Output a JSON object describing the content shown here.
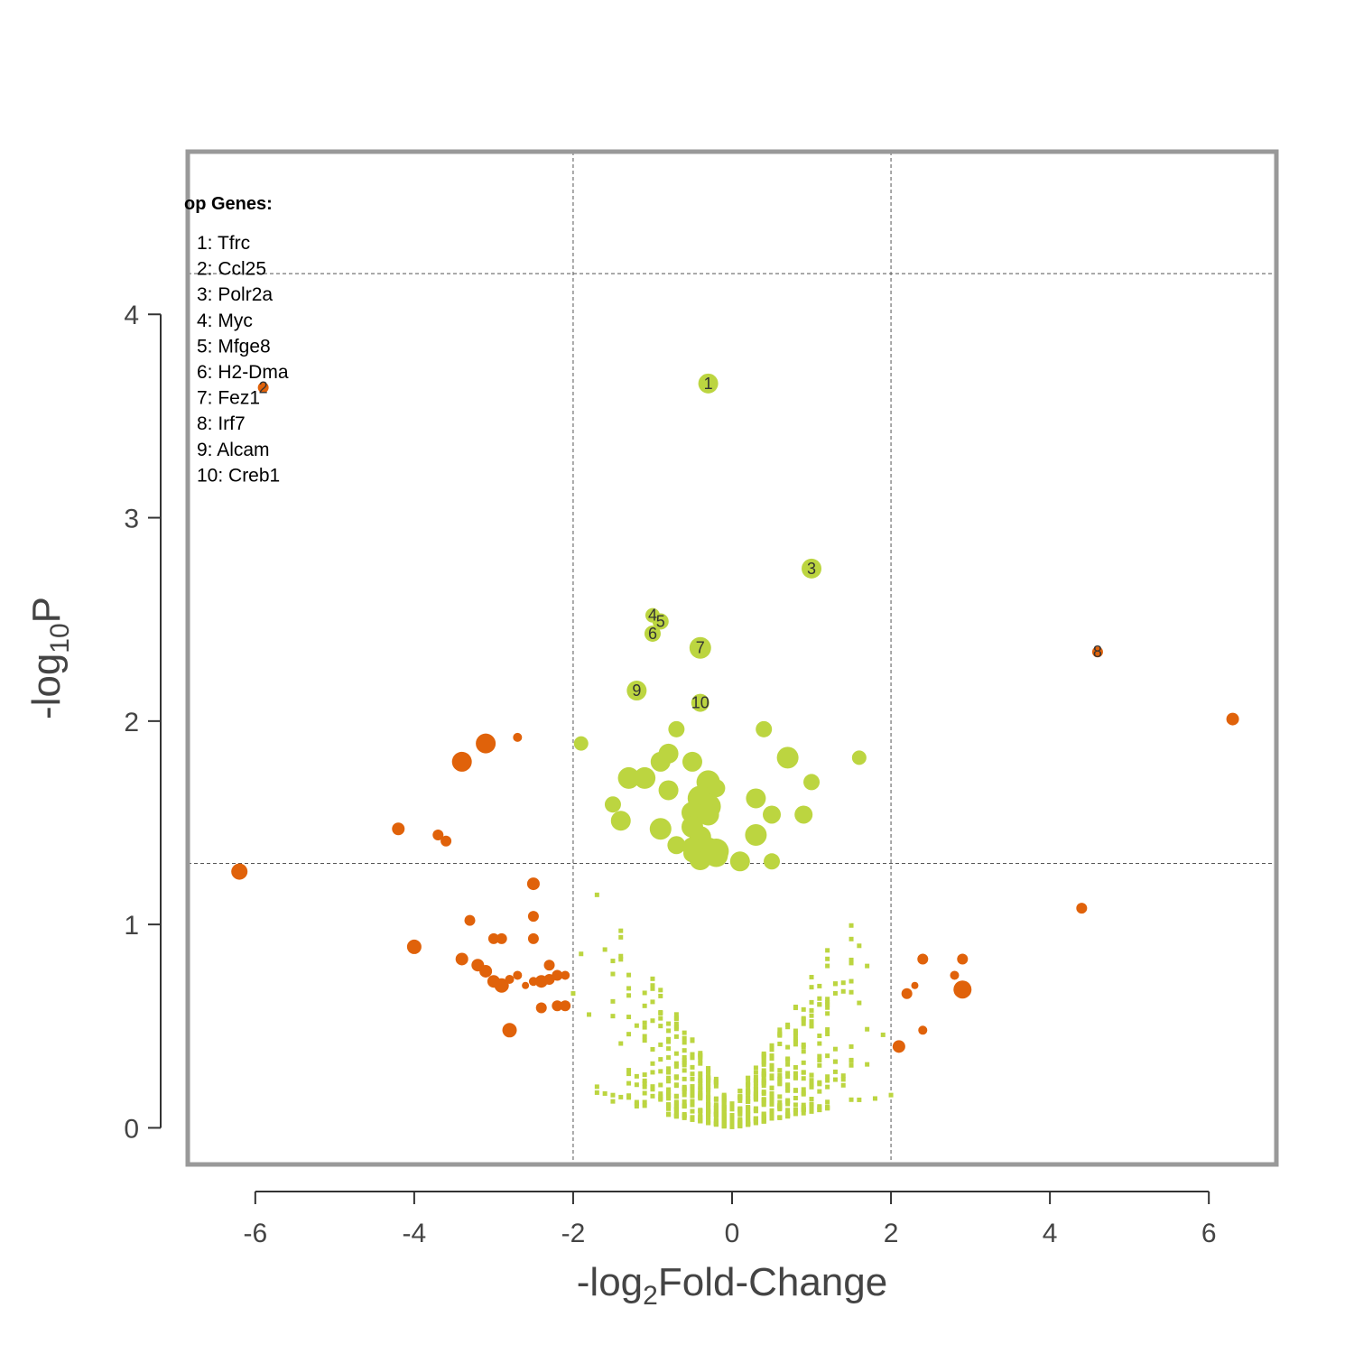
{
  "chart_data": {
    "type": "scatter",
    "xlabel": {
      "prefix": "-log",
      "sub": "2",
      "suffix": "Fold-Change"
    },
    "ylabel": {
      "prefix": "-log",
      "sub": "10",
      "suffix": "P"
    },
    "xlim": [
      -6.85,
      6.85
    ],
    "ylim": [
      -0.18,
      4.8
    ],
    "x_ticks": [
      -6,
      -4,
      -2,
      0,
      2,
      4,
      6
    ],
    "x_tick_labels": [
      "-6",
      "-4",
      "-2",
      "0",
      "2",
      "4",
      "6"
    ],
    "y_ticks": [
      0,
      1,
      2,
      3,
      4
    ],
    "y_tick_labels": [
      "0",
      "1",
      "2",
      "3",
      "4"
    ],
    "thresholds": {
      "x": [
        -2,
        2
      ],
      "y": [
        1.3,
        4.2
      ]
    },
    "colors": {
      "orange": "#e0620a",
      "green": "#bcd540",
      "frame": "#999999",
      "text": "#444444",
      "grid": "#555555"
    },
    "legend": {
      "title": "op Genes:",
      "items": [
        "1: Tfrc",
        "2: Ccl25",
        "3: Polr2a",
        "4: Myc",
        "5: Mfge8",
        "6: H2-Dma",
        "7: Fez1",
        "8: Irf7",
        "9: Alcam",
        "10: Creb1"
      ]
    },
    "series": [
      {
        "color": "orange",
        "points": [
          [
            -5.9,
            3.64,
            6
          ],
          [
            4.6,
            2.34,
            6
          ],
          [
            6.3,
            2.01,
            7
          ],
          [
            -3.1,
            1.89,
            11
          ],
          [
            -2.7,
            1.92,
            5
          ],
          [
            -3.4,
            1.8,
            11
          ],
          [
            -4.2,
            1.47,
            7
          ],
          [
            -3.7,
            1.44,
            6
          ],
          [
            -3.6,
            1.41,
            6
          ],
          [
            -6.2,
            1.26,
            9
          ],
          [
            -2.5,
            1.2,
            7
          ],
          [
            -2.5,
            1.04,
            6
          ],
          [
            -3.3,
            1.02,
            6
          ],
          [
            -4.0,
            0.89,
            8
          ],
          [
            -2.9,
            0.93,
            6
          ],
          [
            -3.0,
            0.93,
            6
          ],
          [
            -2.5,
            0.93,
            6
          ],
          [
            -3.4,
            0.83,
            7
          ],
          [
            -3.2,
            0.8,
            7
          ],
          [
            -3.1,
            0.77,
            7
          ],
          [
            -3.0,
            0.72,
            7
          ],
          [
            -2.9,
            0.7,
            8
          ],
          [
            -2.8,
            0.73,
            5
          ],
          [
            -2.7,
            0.75,
            5
          ],
          [
            -2.6,
            0.7,
            4
          ],
          [
            -2.5,
            0.72,
            5
          ],
          [
            -2.4,
            0.72,
            7
          ],
          [
            -2.3,
            0.73,
            6
          ],
          [
            -2.3,
            0.8,
            6
          ],
          [
            -2.2,
            0.75,
            6
          ],
          [
            -2.1,
            0.75,
            5
          ],
          [
            -2.4,
            0.59,
            6
          ],
          [
            -2.2,
            0.6,
            6
          ],
          [
            -2.1,
            0.6,
            6
          ],
          [
            -2.8,
            0.48,
            8
          ],
          [
            4.4,
            1.08,
            6
          ],
          [
            2.4,
            0.83,
            6
          ],
          [
            2.9,
            0.83,
            6
          ],
          [
            2.8,
            0.75,
            5
          ],
          [
            2.3,
            0.7,
            4
          ],
          [
            2.2,
            0.66,
            6
          ],
          [
            2.9,
            0.68,
            10
          ],
          [
            2.4,
            0.48,
            5
          ],
          [
            2.1,
            0.4,
            7
          ]
        ]
      },
      {
        "color": "green",
        "points": [
          [
            -0.3,
            3.66,
            11
          ],
          [
            1.0,
            2.75,
            11
          ],
          [
            -1.0,
            2.52,
            8
          ],
          [
            -0.9,
            2.49,
            9
          ],
          [
            -1.0,
            2.43,
            9
          ],
          [
            -0.4,
            2.36,
            12
          ],
          [
            -1.2,
            2.15,
            11
          ],
          [
            -0.4,
            2.09,
            10
          ],
          [
            -1.9,
            1.89,
            8
          ],
          [
            -0.7,
            1.96,
            9
          ],
          [
            0.4,
            1.96,
            9
          ],
          [
            -0.8,
            1.84,
            11
          ],
          [
            -0.9,
            1.8,
            11
          ],
          [
            -0.5,
            1.8,
            11
          ],
          [
            0.7,
            1.82,
            12
          ],
          [
            1.6,
            1.82,
            8
          ],
          [
            -1.3,
            1.72,
            12
          ],
          [
            -1.1,
            1.72,
            12
          ],
          [
            1.0,
            1.7,
            9
          ],
          [
            -0.3,
            1.7,
            13
          ],
          [
            -0.2,
            1.67,
            10
          ],
          [
            -0.8,
            1.66,
            11
          ],
          [
            -0.4,
            1.62,
            14
          ],
          [
            -0.3,
            1.58,
            14
          ],
          [
            0.3,
            1.62,
            11
          ],
          [
            -1.5,
            1.59,
            9
          ],
          [
            -0.5,
            1.55,
            12
          ],
          [
            -0.3,
            1.54,
            12
          ],
          [
            0.5,
            1.54,
            10
          ],
          [
            0.9,
            1.54,
            10
          ],
          [
            -1.4,
            1.51,
            11
          ],
          [
            -0.9,
            1.47,
            12
          ],
          [
            -0.5,
            1.48,
            12
          ],
          [
            0.3,
            1.44,
            12
          ],
          [
            -0.4,
            1.43,
            12
          ],
          [
            -0.7,
            1.39,
            10
          ],
          [
            -0.5,
            1.38,
            11
          ],
          [
            -0.3,
            1.37,
            13
          ],
          [
            -0.4,
            1.35,
            14
          ],
          [
            -0.2,
            1.34,
            13
          ],
          [
            -0.4,
            1.32,
            12
          ],
          [
            0.1,
            1.31,
            11
          ],
          [
            0.5,
            1.31,
            9
          ],
          [
            -0.2,
            1.36,
            14
          ],
          [
            -0.5,
            1.35,
            10
          ]
        ]
      }
    ]
  }
}
